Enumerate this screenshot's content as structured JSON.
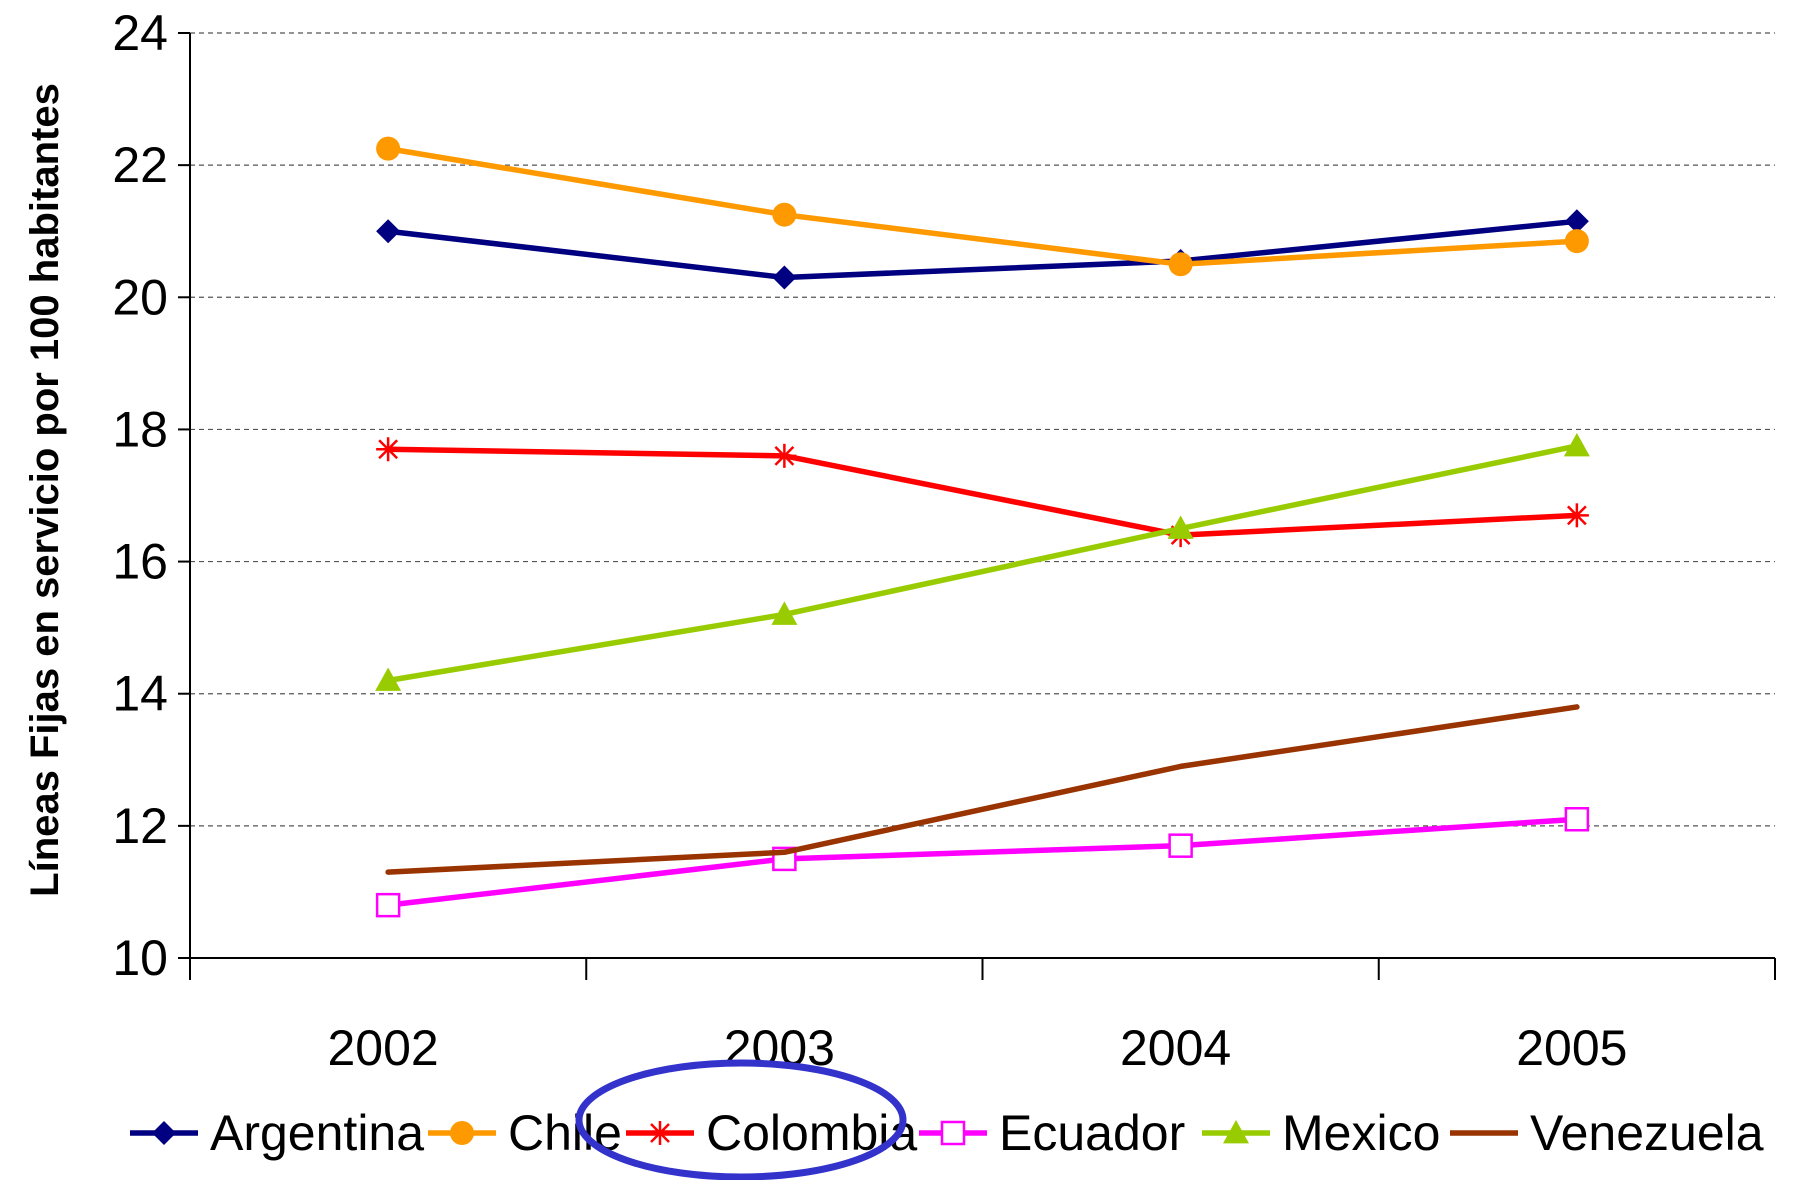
{
  "chart_data": {
    "type": "line",
    "title": "",
    "xlabel": "",
    "ylabel": "Líneas Fijas en servicio por 100 habitantes",
    "categories": [
      "2002",
      "2003",
      "2004",
      "2005"
    ],
    "ylim": [
      10,
      24
    ],
    "yticks": [
      10,
      12,
      14,
      16,
      18,
      20,
      22,
      24
    ],
    "grid": "horizontal dashed",
    "legend": "bottom",
    "series": [
      {
        "name": "Argentina",
        "values": [
          21.0,
          20.3,
          20.55,
          21.15
        ],
        "color": "#000080",
        "marker": "diamond"
      },
      {
        "name": "Chile",
        "values": [
          22.25,
          21.25,
          20.5,
          20.85
        ],
        "color": "#FF9900",
        "marker": "circle"
      },
      {
        "name": "Colombia",
        "values": [
          17.7,
          17.6,
          16.4,
          16.7
        ],
        "color": "#FF0000",
        "marker": "star"
      },
      {
        "name": "Ecuador",
        "values": [
          10.8,
          11.5,
          11.7,
          12.1
        ],
        "color": "#FF00FF",
        "marker": "square-open"
      },
      {
        "name": "Mexico",
        "values": [
          14.2,
          15.2,
          16.5,
          17.75
        ],
        "color": "#99CC00",
        "marker": "triangle"
      },
      {
        "name": "Venezuela",
        "values": [
          11.3,
          11.6,
          12.9,
          13.8
        ],
        "color": "#993300",
        "marker": "none"
      }
    ],
    "annotation": {
      "type": "ellipse",
      "target": "Colombia",
      "color": "#3333CC"
    }
  }
}
